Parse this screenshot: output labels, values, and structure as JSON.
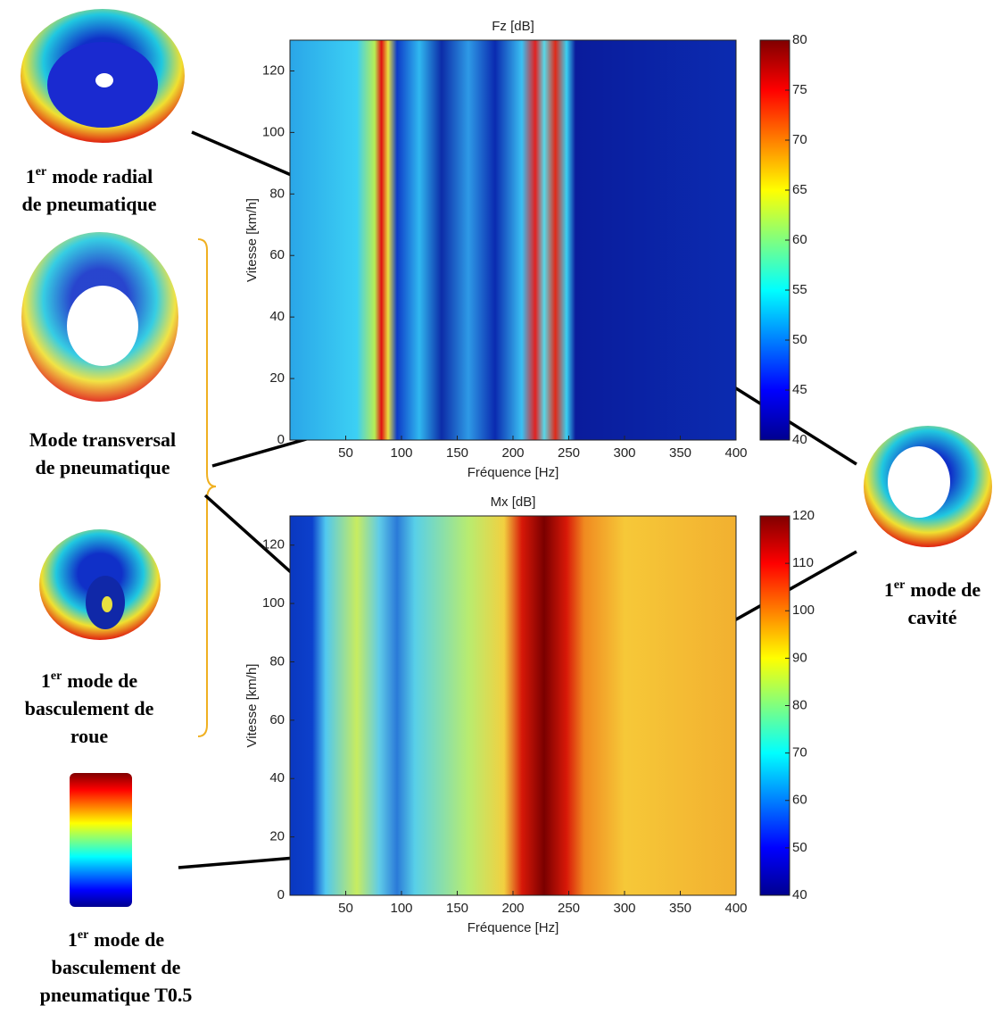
{
  "chart_data": [
    {
      "type": "heatmap",
      "title": "Fz [dB]",
      "xlabel": "Fréquence [Hz]",
      "ylabel": "Vitesse [km/h]",
      "xlim": [
        0,
        400
      ],
      "ylim": [
        0,
        130
      ],
      "xticks": [
        50,
        100,
        150,
        200,
        250,
        300,
        350,
        400
      ],
      "yticks": [
        0,
        20,
        40,
        60,
        80,
        100,
        120
      ],
      "colormap": "jet",
      "clim": [
        40,
        80
      ],
      "cticks": [
        40,
        45,
        50,
        55,
        60,
        65,
        70,
        75,
        80
      ]
    },
    {
      "type": "heatmap",
      "title": "Mx [dB]",
      "xlabel": "Fréquence [Hz]",
      "ylabel": "Vitesse [km/h]",
      "xlim": [
        0,
        400
      ],
      "ylim": [
        0,
        130
      ],
      "xticks": [
        50,
        100,
        150,
        200,
        250,
        300,
        350,
        400
      ],
      "yticks": [
        0,
        20,
        40,
        60,
        80,
        100,
        120
      ],
      "colormap": "jet",
      "clim": [
        40,
        120
      ],
      "cticks": [
        40,
        50,
        60,
        70,
        80,
        90,
        100,
        110,
        120
      ]
    }
  ],
  "annotations": [
    {
      "prefix": "1",
      "sup": "er",
      "lines": [
        "mode radial",
        "de pneumatique"
      ]
    },
    {
      "lines": [
        "Mode transversal",
        "de pneumatique"
      ]
    },
    {
      "prefix": "1",
      "sup": "er",
      "lines": [
        "mode de",
        "basculement de",
        "roue"
      ]
    },
    {
      "prefix": "1",
      "sup": "er",
      "lines": [
        "mode de",
        "basculement de",
        "pneumatique T0.5"
      ]
    },
    {
      "prefix": "1",
      "sup": "er",
      "lines": [
        "mode de",
        "cavité"
      ]
    }
  ]
}
